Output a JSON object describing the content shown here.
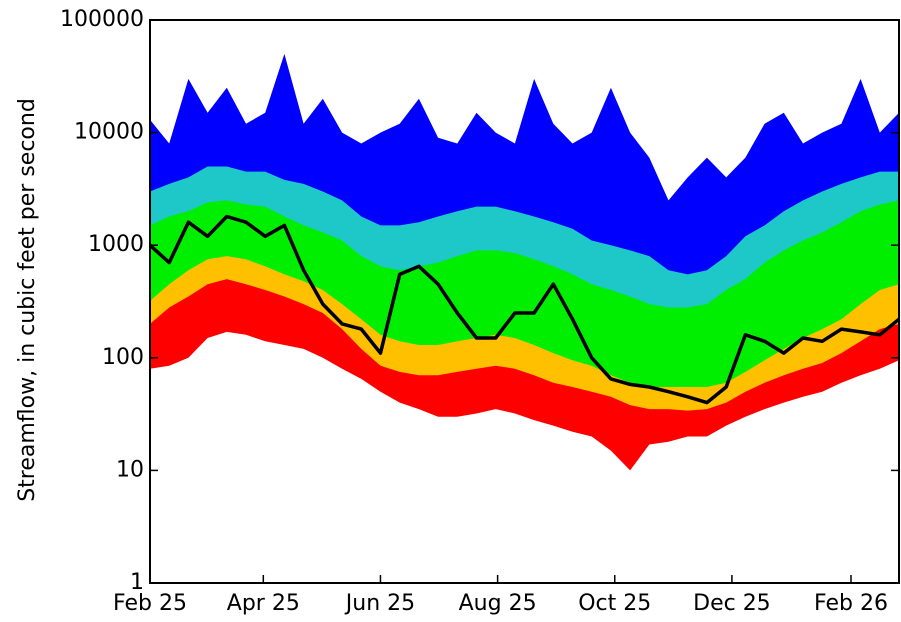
{
  "chart_data": {
    "type": "area",
    "y_label": "Streamflow, in cubic feet per second",
    "log_scale": true,
    "x": [
      0,
      10,
      20,
      30,
      40,
      50,
      60,
      70,
      80,
      90,
      100,
      110,
      120,
      130,
      140,
      150,
      160,
      170,
      180,
      190,
      200,
      210,
      220,
      230,
      240,
      250,
      260,
      270,
      280,
      290,
      300,
      310,
      320,
      330,
      340,
      350,
      360,
      370,
      380,
      390
    ],
    "xlim": [
      0,
      390
    ],
    "xticks": [
      {
        "value": 0,
        "label": "Feb 25"
      },
      {
        "value": 59,
        "label": "Apr 25"
      },
      {
        "value": 120,
        "label": "Jun 25"
      },
      {
        "value": 181,
        "label": "Aug 25"
      },
      {
        "value": 242,
        "label": "Oct 25"
      },
      {
        "value": 303,
        "label": "Dec 25"
      },
      {
        "value": 365,
        "label": "Feb 26"
      }
    ],
    "ylim": [
      1,
      100000
    ],
    "yticks": [
      1,
      10,
      100,
      1000,
      10000,
      100000
    ],
    "series": [
      {
        "color": "#0000ff",
        "values": [
          13000,
          8000,
          30000,
          15000,
          25000,
          12000,
          15000,
          50000,
          12000,
          20000,
          10000,
          8000,
          10000,
          12000,
          20000,
          9000,
          8000,
          15000,
          10000,
          8000,
          30000,
          12000,
          8000,
          10000,
          25000,
          10000,
          6000,
          2500,
          4000,
          6000,
          4000,
          6000,
          12000,
          15000,
          8000,
          10000,
          12000,
          30000,
          10000,
          15000
        ]
      },
      {
        "color": "#1ec8c8",
        "values": [
          3000,
          3500,
          4000,
          5000,
          5000,
          4500,
          4500,
          3800,
          3500,
          3000,
          2500,
          1800,
          1500,
          1500,
          1600,
          1800,
          2000,
          2200,
          2200,
          2000,
          1800,
          1600,
          1400,
          1100,
          1000,
          900,
          800,
          600,
          550,
          600,
          800,
          1200,
          1500,
          2000,
          2500,
          3000,
          3500,
          4000,
          4500,
          4500
        ]
      },
      {
        "color": "#00ee00",
        "values": [
          1500,
          1800,
          2000,
          2400,
          2500,
          2300,
          2200,
          1800,
          1500,
          1300,
          1100,
          800,
          650,
          600,
          650,
          700,
          800,
          900,
          900,
          850,
          750,
          650,
          550,
          450,
          400,
          350,
          300,
          280,
          280,
          300,
          400,
          500,
          700,
          900,
          1100,
          1300,
          1600,
          2000,
          2300,
          2500
        ]
      },
      {
        "color": "#ffc000",
        "values": [
          320,
          450,
          600,
          750,
          800,
          750,
          650,
          550,
          480,
          400,
          300,
          220,
          160,
          140,
          130,
          130,
          140,
          150,
          160,
          150,
          130,
          110,
          95,
          85,
          70,
          60,
          55,
          55,
          55,
          55,
          60,
          75,
          95,
          120,
          150,
          180,
          220,
          300,
          400,
          450
        ]
      },
      {
        "color": "#ff0000",
        "values": [
          200,
          280,
          350,
          450,
          500,
          450,
          400,
          350,
          300,
          250,
          180,
          120,
          85,
          75,
          70,
          70,
          75,
          80,
          85,
          80,
          70,
          60,
          55,
          50,
          45,
          38,
          35,
          35,
          34,
          35,
          40,
          50,
          60,
          70,
          80,
          90,
          110,
          140,
          180,
          200
        ]
      },
      {
        "color": "#ffffff",
        "values": [
          80,
          85,
          100,
          150,
          170,
          160,
          140,
          130,
          120,
          100,
          80,
          65,
          50,
          40,
          35,
          30,
          30,
          32,
          35,
          32,
          28,
          25,
          22,
          20,
          15,
          10,
          17,
          18,
          20,
          20,
          25,
          30,
          35,
          40,
          45,
          50,
          60,
          70,
          80,
          95
        ]
      },
      {
        "color": "#000000",
        "line": true,
        "values": [
          1000,
          700,
          1600,
          1200,
          1800,
          1600,
          1200,
          1500,
          600,
          300,
          200,
          180,
          110,
          550,
          650,
          450,
          250,
          150,
          150,
          250,
          250,
          450,
          220,
          100,
          65,
          58,
          55,
          50,
          45,
          40,
          55,
          160,
          140,
          110,
          150,
          140,
          180,
          170,
          160,
          220
        ]
      }
    ]
  }
}
